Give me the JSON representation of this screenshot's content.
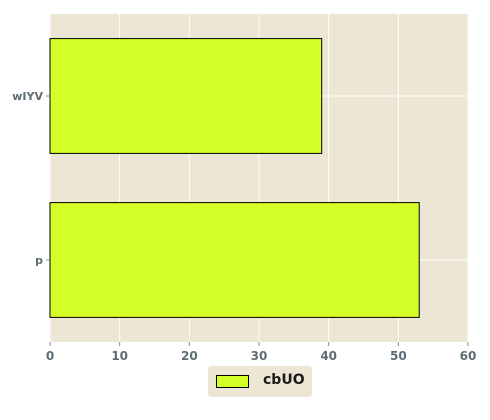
{
  "chart_data": {
    "type": "bar",
    "orientation": "horizontal",
    "categories": [
      "p",
      "wIYV"
    ],
    "series": [
      {
        "name": "cbUO",
        "values": [
          53,
          39
        ],
        "color": "#d4ff26"
      }
    ],
    "xlim": [
      0,
      60
    ],
    "xticks": [
      0,
      10,
      20,
      30,
      40,
      50,
      60
    ],
    "grid": true,
    "legend": "bottom-center",
    "background": "#eee6d5",
    "grid_color": "#ffffff"
  }
}
